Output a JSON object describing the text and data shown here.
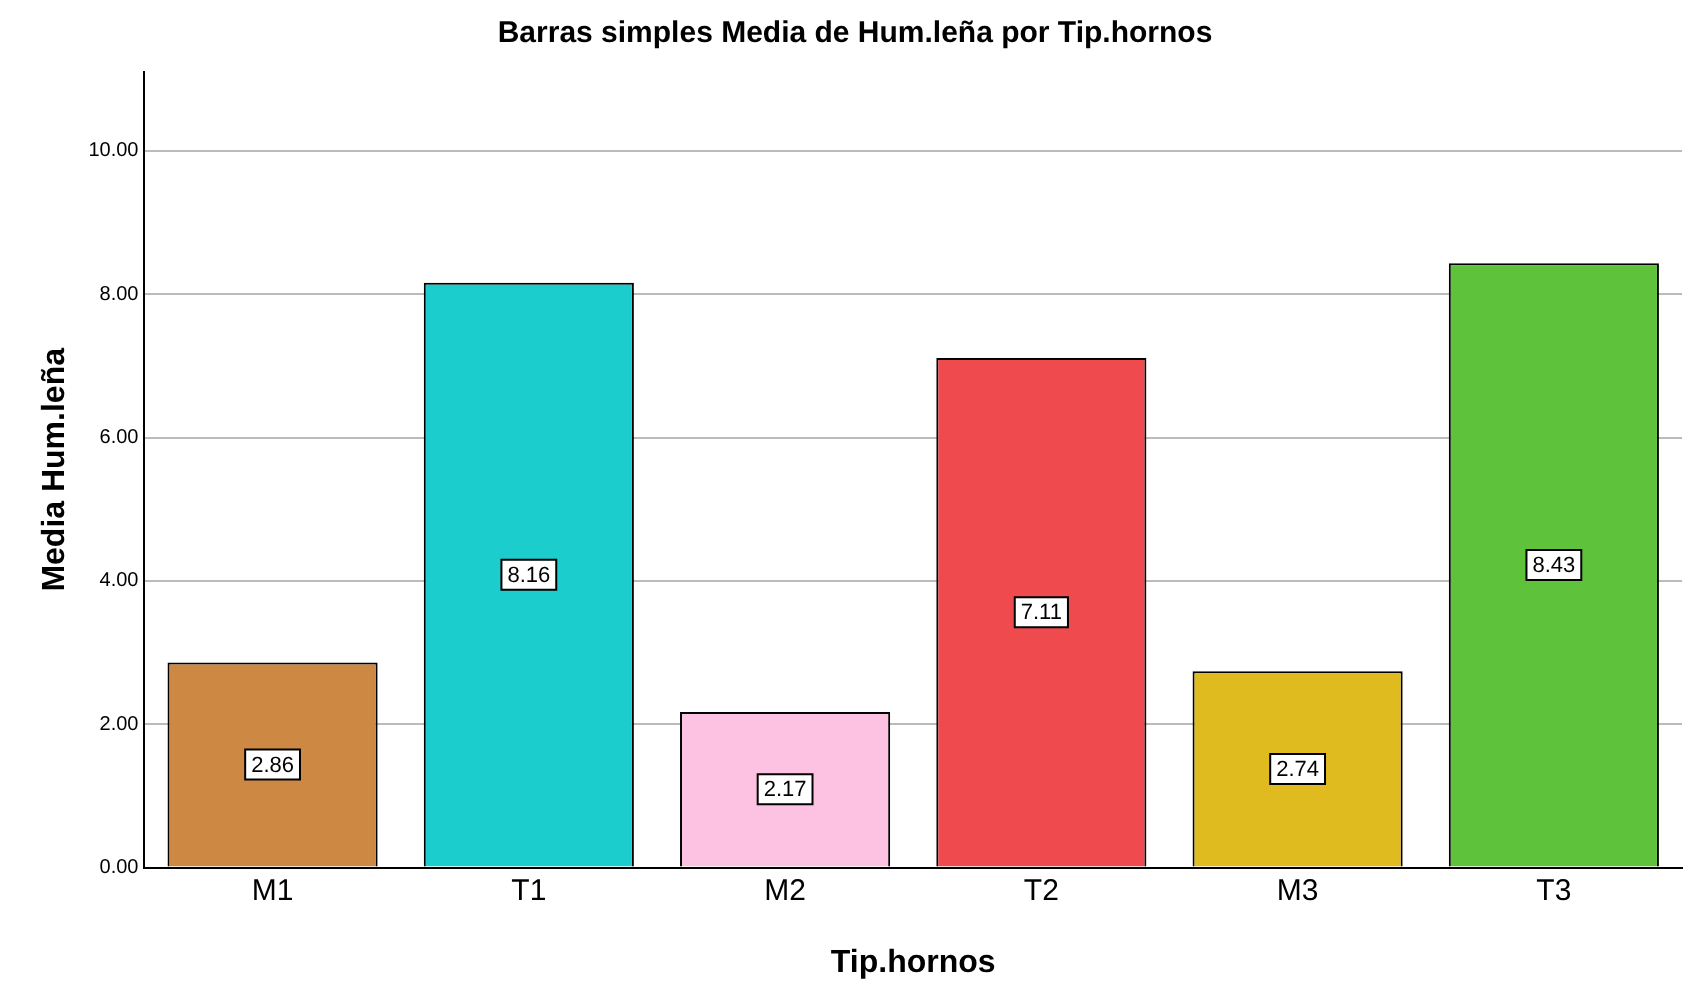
{
  "chart_data": {
    "type": "bar",
    "title": "Barras simples Media de Hum.leña por Tip.hornos",
    "xlabel": "Tip.hornos",
    "ylabel": "Media Hum.leña",
    "categories": [
      "M1",
      "T1",
      "M2",
      "T2",
      "M3",
      "T3"
    ],
    "values": [
      2.86,
      8.16,
      2.17,
      7.11,
      2.74,
      8.43
    ],
    "colors": [
      "#cd8843",
      "#1ccdcd",
      "#fdc1e1",
      "#ef4b4e",
      "#e0bb20",
      "#5ec23a"
    ],
    "ylim": [
      0,
      11.1
    ],
    "yticks": [
      {
        "value": 0,
        "label": "0.00"
      },
      {
        "value": 2,
        "label": "2.00"
      },
      {
        "value": 4,
        "label": "4.00"
      },
      {
        "value": 6,
        "label": "6.00"
      },
      {
        "value": 8,
        "label": "8.00"
      },
      {
        "value": 10,
        "label": "10.00"
      }
    ],
    "grid": "y",
    "data_labels": true
  }
}
